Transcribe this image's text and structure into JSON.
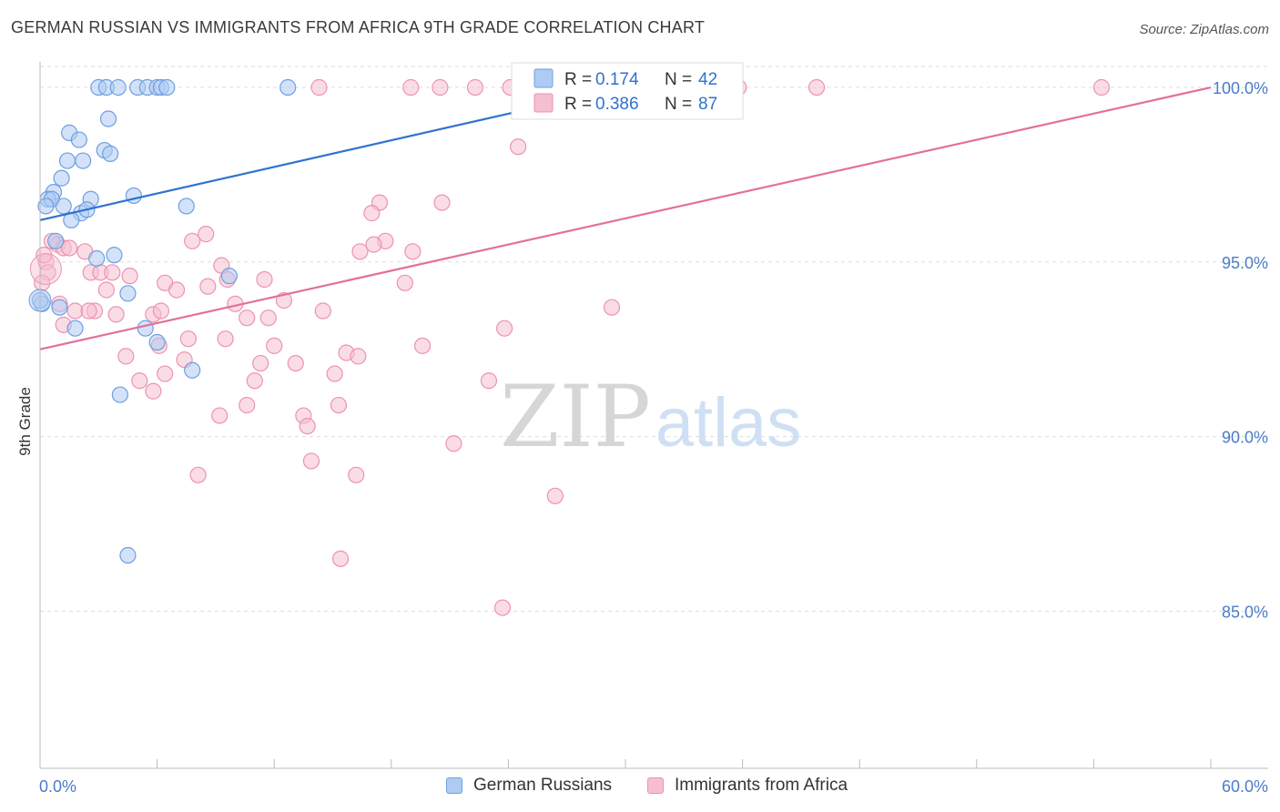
{
  "title": "GERMAN RUSSIAN VS IMMIGRANTS FROM AFRICA 9TH GRADE CORRELATION CHART",
  "source": "Source: ZipAtlas.com",
  "watermark": {
    "zip": "ZIP",
    "atlas": "atlas"
  },
  "colors": {
    "blue_fill": "#aecbf3",
    "blue_stroke": "#6f9fe0",
    "blue_line": "#2f72d0",
    "pink_fill": "#f6bfd0",
    "pink_stroke": "#ec93b1",
    "pink_line": "#e2719a",
    "tick": "#4a7cc9",
    "grid": "#dddddd"
  },
  "legend": {
    "rows": [
      {
        "r_label": "R =",
        "r_value": "0.174",
        "n_label": "N =",
        "n_value": "42"
      },
      {
        "r_label": "R =",
        "r_value": "0.386",
        "n_label": "N =",
        "n_value": "87"
      }
    ]
  },
  "bottom_legend": [
    "German Russians",
    "Immigrants from Africa"
  ],
  "chart_data": {
    "type": "scatter",
    "title": "GERMAN RUSSIAN VS IMMIGRANTS FROM AFRICA 9TH GRADE CORRELATION CHART",
    "xlabel": "",
    "ylabel": "9th Grade",
    "xlim": [
      0,
      60
    ],
    "ylim": [
      80.5,
      100.6
    ],
    "x_tick_labels": [
      "0.0%",
      "60.0%"
    ],
    "y_ticks": [
      85,
      90,
      95,
      100
    ],
    "y_tick_labels": [
      "85.0%",
      "90.0%",
      "95.0%",
      "100.0%"
    ],
    "series": [
      {
        "name": "German Russians",
        "r": 0.174,
        "n": 42,
        "trend": {
          "x": [
            0,
            26
          ],
          "y": [
            96.2,
            99.5
          ]
        },
        "points": [
          [
            3.0,
            100
          ],
          [
            3.4,
            100
          ],
          [
            4.0,
            100
          ],
          [
            5.0,
            100
          ],
          [
            5.5,
            100
          ],
          [
            6.0,
            100
          ],
          [
            6.2,
            100
          ],
          [
            6.5,
            100
          ],
          [
            12.7,
            100
          ],
          [
            3.5,
            99.1
          ],
          [
            1.5,
            98.7
          ],
          [
            2.0,
            98.5
          ],
          [
            3.3,
            98.2
          ],
          [
            3.6,
            98.1
          ],
          [
            1.4,
            97.9
          ],
          [
            2.2,
            97.9
          ],
          [
            1.1,
            97.4
          ],
          [
            0.7,
            97.0
          ],
          [
            4.8,
            96.9
          ],
          [
            0.4,
            96.8
          ],
          [
            0.6,
            96.8
          ],
          [
            2.6,
            96.8
          ],
          [
            0.3,
            96.6
          ],
          [
            1.2,
            96.6
          ],
          [
            7.5,
            96.6
          ],
          [
            2.1,
            96.4
          ],
          [
            2.4,
            96.5
          ],
          [
            1.6,
            96.2
          ],
          [
            0.8,
            95.6
          ],
          [
            3.8,
            95.2
          ],
          [
            2.9,
            95.1
          ],
          [
            9.7,
            94.6
          ],
          [
            4.5,
            94.1
          ],
          [
            0.1,
            93.8
          ],
          [
            1.0,
            93.7
          ],
          [
            5.4,
            93.1
          ],
          [
            1.8,
            93.1
          ],
          [
            6.0,
            92.7
          ],
          [
            7.8,
            91.9
          ],
          [
            4.1,
            91.2
          ],
          [
            4.5,
            86.6
          ],
          [
            0.0,
            93.9
          ]
        ]
      },
      {
        "name": "Immigrants from Africa",
        "r": 0.386,
        "n": 87,
        "trend": {
          "x": [
            0,
            60
          ],
          "y": [
            92.5,
            100.0
          ]
        },
        "points": [
          [
            14.3,
            100
          ],
          [
            19.0,
            100
          ],
          [
            20.5,
            100
          ],
          [
            22.3,
            100
          ],
          [
            24.1,
            100
          ],
          [
            25.2,
            100
          ],
          [
            27.2,
            100
          ],
          [
            31.0,
            100
          ],
          [
            33.6,
            100
          ],
          [
            35.8,
            100
          ],
          [
            39.8,
            100
          ],
          [
            54.4,
            100
          ],
          [
            24.5,
            98.3
          ],
          [
            17.4,
            96.7
          ],
          [
            20.6,
            96.7
          ],
          [
            17.0,
            96.4
          ],
          [
            8.5,
            95.8
          ],
          [
            7.8,
            95.6
          ],
          [
            17.7,
            95.6
          ],
          [
            0.9,
            95.5
          ],
          [
            1.2,
            95.4
          ],
          [
            2.3,
            95.3
          ],
          [
            16.4,
            95.3
          ],
          [
            19.1,
            95.3
          ],
          [
            17.1,
            95.5
          ],
          [
            0.3,
            95.0
          ],
          [
            9.3,
            94.9
          ],
          [
            0.4,
            94.7
          ],
          [
            2.6,
            94.7
          ],
          [
            3.1,
            94.7
          ],
          [
            3.7,
            94.7
          ],
          [
            4.6,
            94.6
          ],
          [
            11.5,
            94.5
          ],
          [
            6.4,
            94.4
          ],
          [
            9.6,
            94.5
          ],
          [
            8.6,
            94.3
          ],
          [
            18.7,
            94.4
          ],
          [
            3.4,
            94.2
          ],
          [
            7.0,
            94.2
          ],
          [
            12.5,
            93.9
          ],
          [
            10.0,
            93.8
          ],
          [
            14.5,
            93.6
          ],
          [
            29.3,
            93.7
          ],
          [
            1.8,
            93.6
          ],
          [
            2.8,
            93.6
          ],
          [
            3.9,
            93.5
          ],
          [
            5.8,
            93.5
          ],
          [
            10.6,
            93.4
          ],
          [
            11.7,
            93.4
          ],
          [
            1.2,
            93.2
          ],
          [
            23.8,
            93.1
          ],
          [
            9.5,
            92.8
          ],
          [
            7.6,
            92.8
          ],
          [
            12.0,
            92.6
          ],
          [
            6.1,
            92.6
          ],
          [
            19.6,
            92.6
          ],
          [
            4.4,
            92.3
          ],
          [
            15.7,
            92.4
          ],
          [
            16.3,
            92.3
          ],
          [
            11.3,
            92.1
          ],
          [
            13.1,
            92.1
          ],
          [
            7.4,
            92.2
          ],
          [
            6.4,
            91.8
          ],
          [
            15.1,
            91.8
          ],
          [
            11.0,
            91.6
          ],
          [
            5.1,
            91.6
          ],
          [
            23.0,
            91.6
          ],
          [
            5.8,
            91.3
          ],
          [
            15.3,
            90.9
          ],
          [
            10.6,
            90.9
          ],
          [
            9.2,
            90.6
          ],
          [
            13.5,
            90.6
          ],
          [
            13.7,
            90.3
          ],
          [
            21.2,
            89.8
          ],
          [
            13.9,
            89.3
          ],
          [
            8.1,
            88.9
          ],
          [
            16.2,
            88.9
          ],
          [
            26.4,
            88.3
          ],
          [
            15.4,
            86.5
          ],
          [
            23.7,
            85.1
          ],
          [
            0.1,
            94.4
          ],
          [
            0.6,
            95.6
          ],
          [
            1.5,
            95.4
          ],
          [
            0.2,
            95.2
          ],
          [
            1.0,
            93.8
          ],
          [
            2.5,
            93.6
          ],
          [
            6.2,
            93.6
          ]
        ]
      }
    ]
  }
}
